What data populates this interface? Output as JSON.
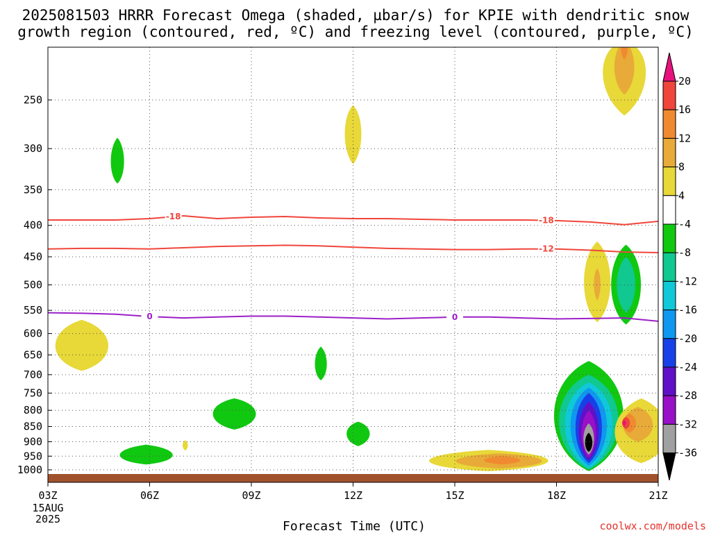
{
  "title": {
    "line1": "2025081503 HRRR Forecast Omega (shaded, µbar/s) for KPIE with dendritic snow",
    "line2": "growth region (contoured, red, ºC) and freezing level (contoured, purple, ºC)"
  },
  "credit": "coolwx.com/models",
  "chart_data": {
    "type": "heatmap",
    "xlabel": "Forecast Time (UTC)",
    "x_ticks": [
      "03Z",
      "06Z",
      "09Z",
      "12Z",
      "15Z",
      "18Z",
      "21Z"
    ],
    "x_first_tick_extra": [
      "15AUG",
      "2025"
    ],
    "x_range_hours_utc": [
      3,
      21
    ],
    "y_ticks": [
      250,
      300,
      350,
      400,
      450,
      500,
      550,
      600,
      650,
      700,
      750,
      800,
      850,
      900,
      950,
      1000
    ],
    "y_range_hPa": [
      200,
      1010
    ],
    "y_scale": "log-pressure",
    "grid": true,
    "colorbar": {
      "labels": [
        "20",
        "16",
        "12",
        "8",
        "4",
        "-4",
        "-8",
        "-12",
        "-16",
        "-20",
        "-24",
        "-28",
        "-32",
        "-36"
      ],
      "colors": [
        "#e8127e",
        "#f0453a",
        "#f08a30",
        "#e8aa38",
        "#e8d838",
        "#ffffff",
        "#10c810",
        "#10c890",
        "#10c8d8",
        "#1098f0",
        "#1840e8",
        "#6010c8",
        "#9810c8",
        "#a0a0a0",
        "#000000"
      ]
    },
    "isotherm_contours": [
      {
        "name": "dendritic growth region",
        "color": "#f0453a",
        "levels": [
          {
            "value": -18,
            "label": "-18",
            "points": [
              [
                3,
                392
              ],
              [
                5,
                392
              ],
              [
                6,
                390
              ],
              [
                7,
                386
              ],
              [
                8,
                390
              ],
              [
                9,
                388
              ],
              [
                10,
                387
              ],
              [
                11,
                389
              ],
              [
                12,
                390
              ],
              [
                13,
                390
              ],
              [
                14,
                391
              ],
              [
                15,
                392
              ],
              [
                16,
                392
              ],
              [
                17,
                392
              ],
              [
                18,
                393
              ],
              [
                19,
                395
              ],
              [
                20,
                399
              ],
              [
                21,
                394
              ]
            ]
          },
          {
            "value": -12,
            "label": "-12",
            "points": [
              [
                3,
                437
              ],
              [
                4,
                436
              ],
              [
                5,
                436
              ],
              [
                6,
                437
              ],
              [
                7,
                435
              ],
              [
                8,
                433
              ],
              [
                9,
                432
              ],
              [
                10,
                431
              ],
              [
                11,
                432
              ],
              [
                12,
                434
              ],
              [
                13,
                436
              ],
              [
                14,
                437
              ],
              [
                15,
                438
              ],
              [
                16,
                438
              ],
              [
                17,
                437
              ],
              [
                18,
                437
              ],
              [
                19,
                439
              ],
              [
                20,
                442
              ],
              [
                21,
                443
              ]
            ]
          }
        ]
      },
      {
        "name": "freezing level",
        "color": "#9b1fc8",
        "levels": [
          {
            "value": 0,
            "label": "0",
            "points": [
              [
                3,
                555
              ],
              [
                4,
                556
              ],
              [
                5,
                558
              ],
              [
                6,
                563
              ],
              [
                7,
                566
              ],
              [
                8,
                564
              ],
              [
                9,
                562
              ],
              [
                10,
                562
              ],
              [
                11,
                564
              ],
              [
                12,
                566
              ],
              [
                13,
                568
              ],
              [
                14,
                566
              ],
              [
                15,
                564
              ],
              [
                16,
                564
              ],
              [
                17,
                566
              ],
              [
                18,
                568
              ],
              [
                19,
                567
              ],
              [
                20,
                566
              ],
              [
                21,
                573
              ]
            ]
          }
        ]
      }
    ],
    "label_positions": [
      [
        6.7,
        -18
      ],
      [
        17.7,
        -18
      ],
      [
        17.7,
        -12
      ],
      [
        6.0,
        0
      ],
      [
        15.0,
        0
      ]
    ],
    "omega_shaded_regions": [
      {
        "band": "4 to 8",
        "center": [
          20.0,
          215
        ],
        "half_width_hours": 0.65,
        "pressure_span": [
          200,
          265
        ]
      },
      {
        "band": "8 to 12",
        "center": [
          20.0,
          220
        ],
        "half_width_hours": 0.3,
        "pressure_span": [
          200,
          245
        ]
      },
      {
        "band": "12 to 16",
        "center": [
          20.0,
          205
        ],
        "half_width_hours": 0.1,
        "pressure_span": [
          200,
          215
        ]
      },
      {
        "band": "4 to 8",
        "center": [
          12.0,
          282
        ],
        "half_width_hours": 0.25,
        "pressure_span": [
          255,
          318
        ]
      },
      {
        "band": "-8 to -4",
        "center": [
          5.05,
          317
        ],
        "half_width_hours": 0.2,
        "pressure_span": [
          288,
          342
        ]
      },
      {
        "band": "4 to 8",
        "center": [
          19.2,
          495
        ],
        "half_width_hours": 0.4,
        "pressure_span": [
          425,
          575
        ]
      },
      {
        "band": "8 to 12",
        "center": [
          19.2,
          495
        ],
        "half_width_hours": 0.1,
        "pressure_span": [
          470,
          530
        ]
      },
      {
        "band": "-8 to -4",
        "center": [
          20.05,
          500
        ],
        "half_width_hours": 0.45,
        "pressure_span": [
          430,
          580
        ]
      },
      {
        "band": "-12 to -8",
        "center": [
          20.05,
          500
        ],
        "half_width_hours": 0.28,
        "pressure_span": [
          450,
          555
        ]
      },
      {
        "band": "4 to 8",
        "center": [
          4.0,
          630
        ],
        "half_width_hours": 0.8,
        "pressure_span": [
          570,
          690
        ]
      },
      {
        "band": "-8 to -4",
        "center": [
          11.05,
          675
        ],
        "half_width_hours": 0.18,
        "pressure_span": [
          630,
          715
        ]
      },
      {
        "band": "-8 to -4",
        "center": [
          8.5,
          810
        ],
        "half_width_hours": 0.65,
        "pressure_span": [
          765,
          860
        ]
      },
      {
        "band": "-8 to -4",
        "center": [
          12.15,
          872
        ],
        "half_width_hours": 0.35,
        "pressure_span": [
          835,
          915
        ]
      },
      {
        "band": "4 to 8",
        "center": [
          7.05,
          912
        ],
        "half_width_hours": 0.08,
        "pressure_span": [
          895,
          930
        ]
      },
      {
        "band": "-8 to -4",
        "center": [
          5.9,
          950
        ],
        "half_width_hours": 0.8,
        "pressure_span": [
          910,
          980
        ]
      },
      {
        "band": "4 to 8",
        "center": [
          16.0,
          968
        ],
        "half_width_hours": 1.8,
        "pressure_span": [
          928,
          1005
        ]
      },
      {
        "band": "8 to 12",
        "center": [
          16.3,
          968
        ],
        "half_width_hours": 1.3,
        "pressure_span": [
          940,
          995
        ]
      },
      {
        "band": "12 to 16",
        "center": [
          16.4,
          965
        ],
        "half_width_hours": 0.55,
        "pressure_span": [
          950,
          980
        ]
      },
      {
        "band": "-8 to -4",
        "center": [
          18.95,
          815
        ],
        "half_width_hours": 1.05,
        "pressure_span": [
          665,
          1005
        ]
      },
      {
        "band": "-12 to -8",
        "center": [
          18.95,
          822
        ],
        "half_width_hours": 0.9,
        "pressure_span": [
          700,
          1000
        ]
      },
      {
        "band": "-16 to -12",
        "center": [
          18.95,
          830
        ],
        "half_width_hours": 0.72,
        "pressure_span": [
          720,
          995
        ]
      },
      {
        "band": "-20 to -16",
        "center": [
          18.95,
          840
        ],
        "half_width_hours": 0.55,
        "pressure_span": [
          735,
          985
        ]
      },
      {
        "band": "-24 to -20",
        "center": [
          18.95,
          850
        ],
        "half_width_hours": 0.4,
        "pressure_span": [
          750,
          975
        ]
      },
      {
        "band": "-28 to -24",
        "center": [
          18.95,
          862
        ],
        "half_width_hours": 0.3,
        "pressure_span": [
          775,
          965
        ]
      },
      {
        "band": "-32 to -28",
        "center": [
          18.95,
          875
        ],
        "half_width_hours": 0.22,
        "pressure_span": [
          800,
          955
        ]
      },
      {
        "band": "-36 to -32",
        "center": [
          18.95,
          890
        ],
        "half_width_hours": 0.16,
        "pressure_span": [
          840,
          945
        ]
      },
      {
        "band": "below -36",
        "center": [
          18.95,
          905
        ],
        "half_width_hours": 0.11,
        "pressure_span": [
          870,
          935
        ]
      },
      {
        "band": "4 to 8",
        "center": [
          20.5,
          880
        ],
        "half_width_hours": 0.8,
        "pressure_span": [
          765,
          975
        ]
      },
      {
        "band": "8 to 12",
        "center": [
          20.4,
          850
        ],
        "half_width_hours": 0.45,
        "pressure_span": [
          790,
          900
        ]
      },
      {
        "band": "12 to 16",
        "center": [
          20.15,
          840
        ],
        "half_width_hours": 0.2,
        "pressure_span": [
          810,
          870
        ]
      },
      {
        "band": "16 to 20",
        "center": [
          20.05,
          838
        ],
        "half_width_hours": 0.12,
        "pressure_span": [
          820,
          858
        ]
      },
      {
        "band": "above 20",
        "center": [
          20.0,
          838
        ],
        "half_width_hours": 0.05,
        "pressure_span": [
          830,
          848
        ]
      }
    ],
    "terrain_color": "#a0522d"
  }
}
